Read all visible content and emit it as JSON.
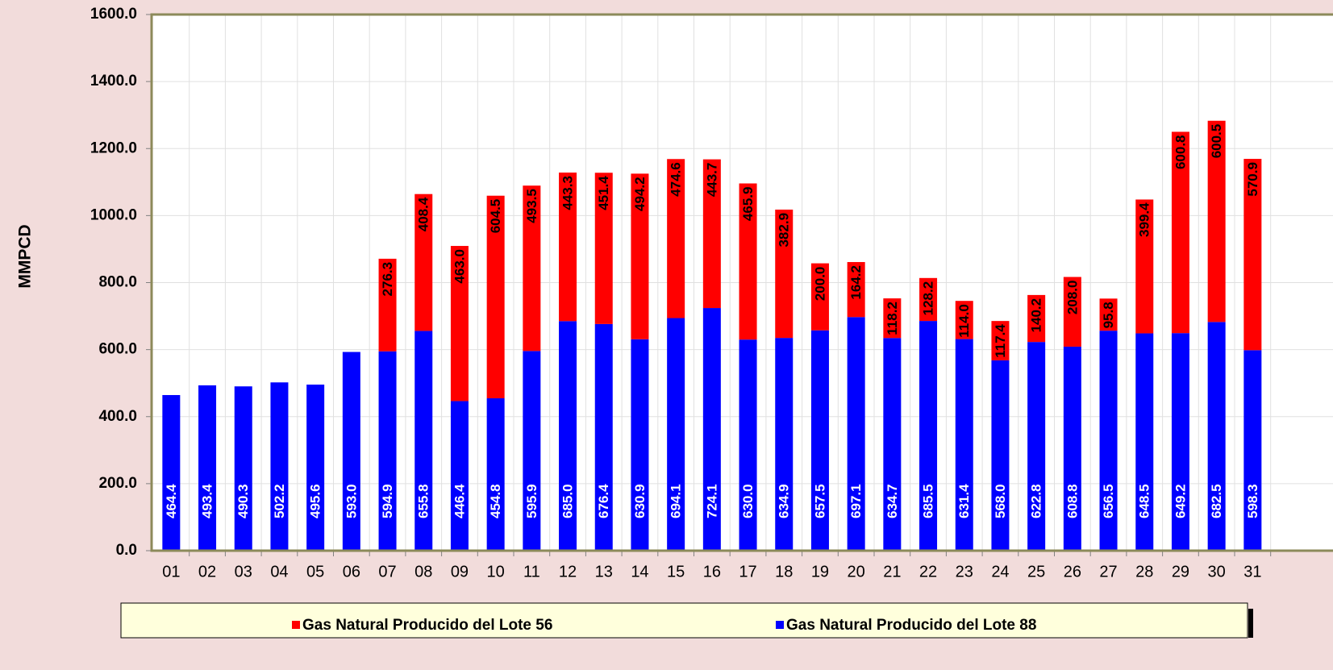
{
  "chart_data": {
    "type": "stacked_bar",
    "y_label": "MMPCD",
    "categories": [
      "01",
      "02",
      "03",
      "04",
      "05",
      "06",
      "07",
      "08",
      "09",
      "10",
      "11",
      "12",
      "13",
      "14",
      "15",
      "16",
      "17",
      "18",
      "19",
      "20",
      "21",
      "22",
      "23",
      "24",
      "25",
      "26",
      "27",
      "28",
      "29",
      "30",
      "31"
    ],
    "series": [
      {
        "name": "Gas Natural Producido del Lote 88",
        "color": "#0000ff",
        "label_color": "#ffffff",
        "values": [
          464.4,
          493.4,
          490.3,
          502.2,
          495.6,
          593.0,
          594.9,
          655.8,
          446.4,
          454.8,
          595.9,
          685.0,
          676.4,
          630.9,
          694.1,
          724.1,
          630.0,
          634.9,
          657.5,
          697.1,
          634.7,
          685.5,
          631.4,
          568.0,
          622.8,
          608.8,
          656.5,
          648.5,
          649.2,
          682.5,
          598.3
        ],
        "value_labels": [
          "464.4",
          "493.4",
          "490.3",
          "502.2",
          "495.6",
          "593.0",
          "594.9",
          "655.8",
          "446.4",
          "454.8",
          "595.9",
          "685.0",
          "676.4",
          "630.9",
          "694.1",
          "724.1",
          "630.0",
          "634.9",
          "657.5",
          "697.1",
          "634.7",
          "685.5",
          "631.4",
          "568.0",
          "622.8",
          "608.8",
          "656.5",
          "648.5",
          "649.2",
          "682.5",
          "598.3"
        ]
      },
      {
        "name": "Gas Natural Producido del Lote 56",
        "color": "#ff0000",
        "label_color": "#000000",
        "values": [
          null,
          null,
          null,
          null,
          null,
          null,
          276.3,
          408.4,
          463.0,
          604.5,
          493.5,
          443.3,
          451.4,
          494.2,
          474.6,
          443.7,
          465.9,
          382.9,
          200.0,
          164.2,
          118.2,
          128.2,
          114.0,
          117.4,
          140.2,
          208.0,
          95.8,
          399.4,
          600.8,
          600.5,
          570.9
        ],
        "value_labels": [
          null,
          null,
          null,
          null,
          null,
          null,
          "276.3",
          "408.4",
          "463.0",
          "604.5",
          "493.5",
          "443.3",
          "451.4",
          "494.2",
          "474.6",
          "443.7",
          "465.9",
          "382.9",
          "200.0",
          "164.2",
          "118.2",
          "128.2",
          "114.0",
          "117.4",
          "140.2",
          "208.0",
          "95.8",
          "399.4",
          "600.8",
          "600.5",
          "570.9"
        ]
      }
    ],
    "ylim": [
      0,
      1600
    ],
    "yticks": [
      {
        "value": 0,
        "label": "0.0"
      },
      {
        "value": 200,
        "label": "200.0"
      },
      {
        "value": 400,
        "label": "400.0"
      },
      {
        "value": 600,
        "label": "600.0"
      },
      {
        "value": 800,
        "label": "800.0"
      },
      {
        "value": 1000,
        "label": "1000.0"
      },
      {
        "value": 1200,
        "label": "1200.0"
      },
      {
        "value": 1400,
        "label": "1400.0"
      },
      {
        "value": 1600,
        "label": "1600.0"
      }
    ],
    "grid": true
  }
}
